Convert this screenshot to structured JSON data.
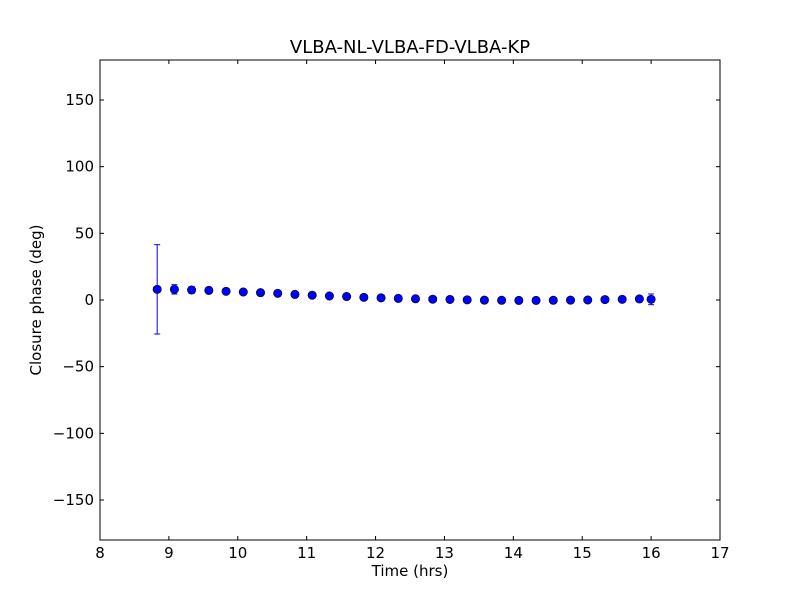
{
  "chart_data": {
    "type": "scatter",
    "title": "VLBA-NL-VLBA-FD-VLBA-KP",
    "xlabel": "Time (hrs)",
    "ylabel": "Closure phase (deg)",
    "xlim": [
      8,
      17
    ],
    "ylim": [
      -180,
      180
    ],
    "xticks": [
      8,
      9,
      10,
      11,
      12,
      13,
      14,
      15,
      16,
      17
    ],
    "xtick_labels": [
      "8",
      "9",
      "10",
      "11",
      "12",
      "13",
      "14",
      "15",
      "16",
      "17"
    ],
    "yticks": [
      150,
      100,
      50,
      0,
      -50,
      -100,
      -150
    ],
    "ytick_labels": [
      "150",
      "100",
      "50",
      "0",
      "−50",
      "−100",
      "−150"
    ],
    "grid": false,
    "marker_color": "#0000ff",
    "errorbar_color": "#0000ff",
    "series": [
      {
        "x": [
          8.83,
          9.08,
          9.33,
          9.58,
          9.83,
          10.08,
          10.33,
          10.58,
          10.83,
          11.08,
          11.33,
          11.58,
          11.83,
          12.08,
          12.33,
          12.58,
          12.83,
          13.08,
          13.33,
          13.58,
          13.83,
          14.08,
          14.33,
          14.58,
          14.83,
          15.08,
          15.33,
          15.58,
          15.83,
          16.0
        ],
        "y": [
          8.0,
          8.0,
          7.5,
          7.2,
          6.5,
          6.0,
          5.5,
          5.0,
          4.2,
          3.6,
          3.0,
          2.6,
          2.0,
          1.6,
          1.2,
          0.9,
          0.6,
          0.4,
          0.1,
          -0.1,
          -0.2,
          -0.3,
          -0.3,
          -0.2,
          -0.1,
          0.0,
          0.3,
          0.5,
          0.8,
          0.5
        ],
        "yerr": [
          33.5,
          3.5,
          2.5,
          2.0,
          2.0,
          2.0,
          2.0,
          2.0,
          2.0,
          2.0,
          2.0,
          2.0,
          2.0,
          2.0,
          2.0,
          2.0,
          2.0,
          2.0,
          2.0,
          2.0,
          2.0,
          2.0,
          2.0,
          2.0,
          2.0,
          2.0,
          2.0,
          2.0,
          2.0,
          4.0
        ]
      }
    ]
  }
}
